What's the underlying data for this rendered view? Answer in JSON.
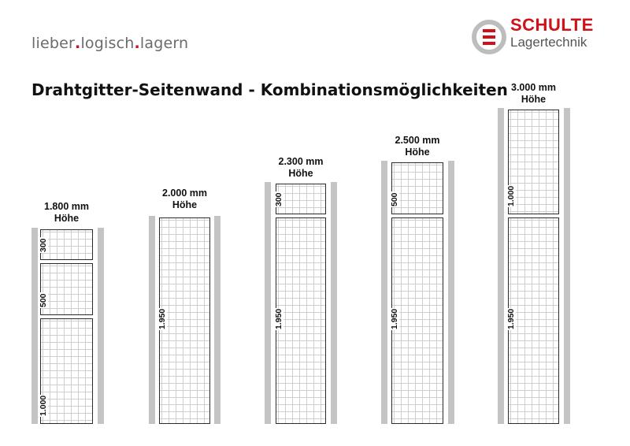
{
  "header": {
    "slogan": {
      "part1": "lieber",
      "dot1": ".",
      "part2": "logisch",
      "dot2": ".",
      "part3": "lagern"
    },
    "logo": {
      "brand": "SCHULTE",
      "sub": "Lagertechnik"
    }
  },
  "title": "Drahtgitter-Seitenwand - Kombinationsmöglichkeiten",
  "colors": {
    "brand_red": "#d0111b",
    "post_grey": "#c4c4c4",
    "grid_line": "#cfcfcf"
  },
  "configurations": [
    {
      "height_value": "1.800 mm",
      "height_unit": "Höhe",
      "panels": [
        "300",
        "500",
        "1.000"
      ]
    },
    {
      "height_value": "2.000 mm",
      "height_unit": "Höhe",
      "panels": [
        "1.950"
      ]
    },
    {
      "height_value": "2.300 mm",
      "height_unit": "Höhe",
      "panels": [
        "300",
        "1.950"
      ]
    },
    {
      "height_value": "2.500 mm",
      "height_unit": "Höhe",
      "panels": [
        "500",
        "1.950"
      ]
    },
    {
      "height_value": "3.000 mm",
      "height_unit": "Höhe",
      "panels": [
        "1.000",
        "1.950"
      ]
    }
  ]
}
